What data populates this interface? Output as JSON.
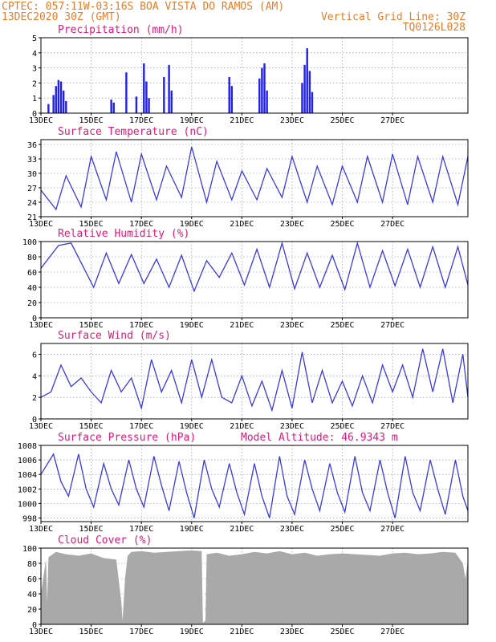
{
  "header": {
    "line1_left": "CPTEC:   057:11W-03:16S  BOA VISTA DO RAMOS (AM)",
    "line2_left": "13DEC2020 30Z (GMT)",
    "line2_right": "Vertical Grid Line: 30Z",
    "line3_right": "TQ0126L028"
  },
  "x_tick_labels": [
    "13DEC",
    "15DEC",
    "17DEC",
    "19DEC",
    "21DEC",
    "23DEC",
    "25DEC",
    "27DEC"
  ],
  "colors": {
    "series": "#3a3ae0",
    "bars": "#2020e8",
    "cloud": "#a9a9a9",
    "title": "#e0187a",
    "header": "#e87d2a"
  },
  "chart_data": [
    {
      "id": "precip",
      "type": "bar",
      "title": "Precipitation (mm/h)",
      "ylim": [
        0,
        5
      ],
      "yticks": [
        0,
        1,
        2,
        3,
        4,
        5
      ],
      "x_days": [
        0.3,
        0.5,
        0.6,
        0.7,
        0.8,
        0.9,
        1.0,
        2.8,
        2.9,
        3.4,
        3.8,
        4.1,
        4.2,
        4.3,
        4.9,
        5.1,
        5.2,
        7.5,
        7.6,
        8.7,
        8.8,
        8.9,
        9.0,
        10.4,
        10.5,
        10.6,
        10.7,
        10.8
      ],
      "values": [
        0.6,
        1.2,
        1.8,
        2.2,
        2.1,
        1.5,
        0.8,
        0.9,
        0.7,
        2.7,
        1.1,
        3.3,
        2.1,
        1.0,
        2.4,
        3.2,
        1.5,
        2.4,
        1.8,
        2.3,
        3.0,
        3.3,
        1.5,
        2.0,
        3.2,
        4.3,
        2.8,
        1.4
      ]
    },
    {
      "id": "temp",
      "type": "line",
      "title": "Surface Temperature (nC)",
      "ylim": [
        21,
        37
      ],
      "yticks": [
        21,
        24,
        27,
        30,
        33,
        36
      ],
      "x_days": [
        0,
        0.6,
        1.0,
        1.6,
        2.0,
        2.6,
        3.0,
        3.6,
        4.0,
        4.6,
        5.0,
        5.6,
        6.0,
        6.6,
        7.0,
        7.6,
        8.0,
        8.6,
        9.0,
        9.6,
        10.0,
        10.6,
        11.0,
        11.6,
        12.0,
        12.6,
        13.0,
        13.6,
        14.0,
        14.6,
        15.0,
        15.6,
        16.0,
        16.6,
        17.0
      ],
      "values": [
        26.5,
        22.5,
        29.5,
        23,
        33.5,
        24.5,
        34.5,
        24,
        34,
        24.5,
        31.5,
        25,
        35.5,
        24,
        32.5,
        24.5,
        30.5,
        24.5,
        31,
        25,
        33.5,
        24,
        31.5,
        23.5,
        31.5,
        24,
        33.5,
        24,
        34,
        23.5,
        33.5,
        24,
        33.5,
        23.5,
        33.5
      ]
    },
    {
      "id": "rh",
      "type": "line",
      "title": "Relative Humidity (%)",
      "ylim": [
        0,
        100
      ],
      "yticks": [
        0,
        20,
        40,
        60,
        80,
        100
      ],
      "x_days": [
        0,
        0.7,
        1.2,
        2.1,
        2.6,
        3.1,
        3.6,
        4.1,
        4.6,
        5.1,
        5.6,
        6.1,
        6.6,
        7.1,
        7.6,
        8.1,
        8.6,
        9.1,
        9.6,
        10.1,
        10.6,
        11.1,
        11.6,
        12.1,
        12.6,
        13.1,
        13.6,
        14.1,
        14.6,
        15.1,
        15.6,
        16.1,
        16.6,
        17.0
      ],
      "values": [
        65,
        95,
        98,
        40,
        85,
        45,
        83,
        45,
        77,
        40,
        82,
        35,
        75,
        53,
        85,
        43,
        90,
        40,
        98,
        38,
        85,
        40,
        82,
        37,
        98,
        40,
        88,
        42,
        90,
        40,
        93,
        40,
        93,
        43
      ]
    },
    {
      "id": "wind",
      "type": "line",
      "title": "Surface Wind (m/s)",
      "ylim": [
        0,
        7
      ],
      "yticks": [
        0,
        2,
        4,
        6
      ],
      "x_days": [
        0,
        0.4,
        0.8,
        1.2,
        1.6,
        2.0,
        2.4,
        2.8,
        3.2,
        3.6,
        4.0,
        4.4,
        4.8,
        5.2,
        5.6,
        6.0,
        6.4,
        6.8,
        7.2,
        7.6,
        8.0,
        8.4,
        8.8,
        9.2,
        9.6,
        10.0,
        10.4,
        10.8,
        11.2,
        11.6,
        12.0,
        12.4,
        12.8,
        13.2,
        13.6,
        14.0,
        14.4,
        14.8,
        15.2,
        15.6,
        16.0,
        16.4,
        16.8,
        17.0
      ],
      "values": [
        2.0,
        2.5,
        5.0,
        3.0,
        3.8,
        2.5,
        1.5,
        4.5,
        2.5,
        3.8,
        1.0,
        5.5,
        2.5,
        4.5,
        1.5,
        5.5,
        2.0,
        5.5,
        2.0,
        1.5,
        4.0,
        1.2,
        3.5,
        0.8,
        4.5,
        1.0,
        6.2,
        1.5,
        4.5,
        1.5,
        3.5,
        1.2,
        4.0,
        1.5,
        5.0,
        2.5,
        5.0,
        2.0,
        6.5,
        2.5,
        6.5,
        1.5,
        6.0,
        2.0
      ]
    },
    {
      "id": "pres",
      "type": "line",
      "title": "Surface Pressure (hPa)",
      "annotation": "Model Altitude: 46.9343 m",
      "ylim": [
        997.5,
        1008
      ],
      "yticks": [
        998,
        1000,
        1002,
        1004,
        1006,
        1008
      ],
      "x_days": [
        0,
        0.5,
        0.8,
        1.1,
        1.5,
        1.8,
        2.1,
        2.5,
        2.8,
        3.1,
        3.5,
        3.8,
        4.1,
        4.5,
        4.8,
        5.1,
        5.5,
        5.8,
        6.1,
        6.5,
        6.8,
        7.1,
        7.5,
        7.8,
        8.1,
        8.5,
        8.8,
        9.1,
        9.5,
        9.8,
        10.1,
        10.5,
        10.8,
        11.1,
        11.5,
        11.8,
        12.1,
        12.5,
        12.8,
        13.1,
        13.5,
        13.8,
        14.1,
        14.5,
        14.8,
        15.1,
        15.5,
        15.8,
        16.1,
        16.5,
        16.8,
        17.0
      ],
      "values": [
        1004.0,
        1006.8,
        1003.0,
        1001.0,
        1006.8,
        1002.0,
        999.5,
        1005.5,
        1002.0,
        999.8,
        1006.0,
        1002.0,
        999.5,
        1006.5,
        1002.5,
        999.0,
        1005.8,
        1001.5,
        998.0,
        1006.0,
        1002.0,
        999.5,
        1005.5,
        1001.5,
        998.5,
        1005.5,
        1001.0,
        998.0,
        1006.5,
        1001.0,
        998.5,
        1006.0,
        1002.0,
        999.0,
        1005.5,
        1001.5,
        998.8,
        1006.5,
        1001.5,
        999.0,
        1006.0,
        1001.5,
        998.0,
        1006.5,
        1001.5,
        999.0,
        1006.0,
        1002.0,
        998.5,
        1006.0,
        1001.0,
        999.0
      ]
    },
    {
      "id": "cloud",
      "type": "area",
      "title": "Cloud Cover (%)",
      "ylim": [
        0,
        100
      ],
      "yticks": [
        0,
        20,
        40,
        60,
        80,
        100
      ],
      "x_days": [
        0,
        0.2,
        0.25,
        0.3,
        0.6,
        1.0,
        1.5,
        2.0,
        2.5,
        3.0,
        3.2,
        3.25,
        3.35,
        3.45,
        3.6,
        4.0,
        4.5,
        5.0,
        5.5,
        6.0,
        6.4,
        6.45,
        6.55,
        6.6,
        7.0,
        7.5,
        8.0,
        8.5,
        9.0,
        9.5,
        10.0,
        10.5,
        11.0,
        11.5,
        12.0,
        12.5,
        13.0,
        13.5,
        14.0,
        14.5,
        15.0,
        15.5,
        16.0,
        16.5,
        16.8,
        16.9,
        17.0
      ],
      "values": [
        40,
        85,
        30,
        88,
        95,
        92,
        90,
        93,
        87,
        85,
        30,
        5,
        60,
        90,
        95,
        96,
        94,
        95,
        96,
        97,
        96,
        2,
        5,
        92,
        94,
        90,
        92,
        95,
        93,
        96,
        92,
        94,
        90,
        92,
        93,
        92,
        91,
        90,
        93,
        94,
        92,
        93,
        95,
        94,
        80,
        60,
        85
      ]
    }
  ]
}
